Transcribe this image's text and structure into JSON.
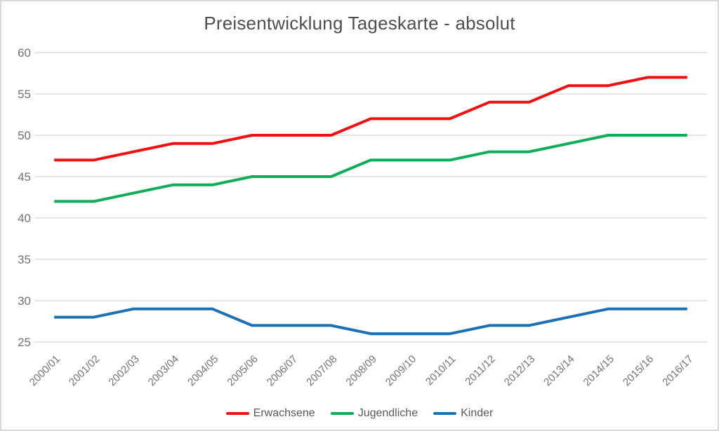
{
  "title": "Preisentwicklung Tageskarte - absolut",
  "chart_data": {
    "type": "line",
    "title": "Preisentwicklung Tageskarte - absolut",
    "categories": [
      "2000/01",
      "2001/02",
      "2002/03",
      "2003/04",
      "2004/05",
      "2005/06",
      "2006/07",
      "2007/08",
      "2008/09",
      "2009/10",
      "2010/11",
      "2011/12",
      "2012/13",
      "2013/14",
      "2014/15",
      "2015/16",
      "2016/17"
    ],
    "series": [
      {
        "name": "Erwachsene",
        "color": "#f20f0f",
        "values": [
          47,
          47,
          48,
          49,
          49,
          50,
          50,
          50,
          52,
          52,
          52,
          54,
          54,
          56,
          56,
          57,
          57
        ]
      },
      {
        "name": "Jugendliche",
        "color": "#0fad58",
        "values": [
          42,
          42,
          43,
          44,
          44,
          45,
          45,
          45,
          47,
          47,
          47,
          48,
          48,
          49,
          50,
          50,
          50
        ]
      },
      {
        "name": "Kinder",
        "color": "#1b70b8",
        "values": [
          28,
          28,
          29,
          29,
          29,
          27,
          27,
          27,
          26,
          26,
          26,
          27,
          27,
          28,
          29,
          29,
          29
        ]
      }
    ],
    "xlabel": "",
    "ylabel": "",
    "ylim": [
      25,
      60
    ],
    "ytick_step": 5,
    "yticks": [
      60,
      55,
      50,
      45,
      40,
      35,
      30,
      25
    ],
    "grid": "horizontal-only",
    "legend_position": "bottom-center",
    "x_label_rotation_deg": 45
  },
  "colors": {
    "background": "#ffffff",
    "frame_border": "#d9d9d9",
    "gridline": "#dedede",
    "axis_label": "#737373",
    "title_text": "#4e4e4e",
    "legend_text": "#595959"
  }
}
